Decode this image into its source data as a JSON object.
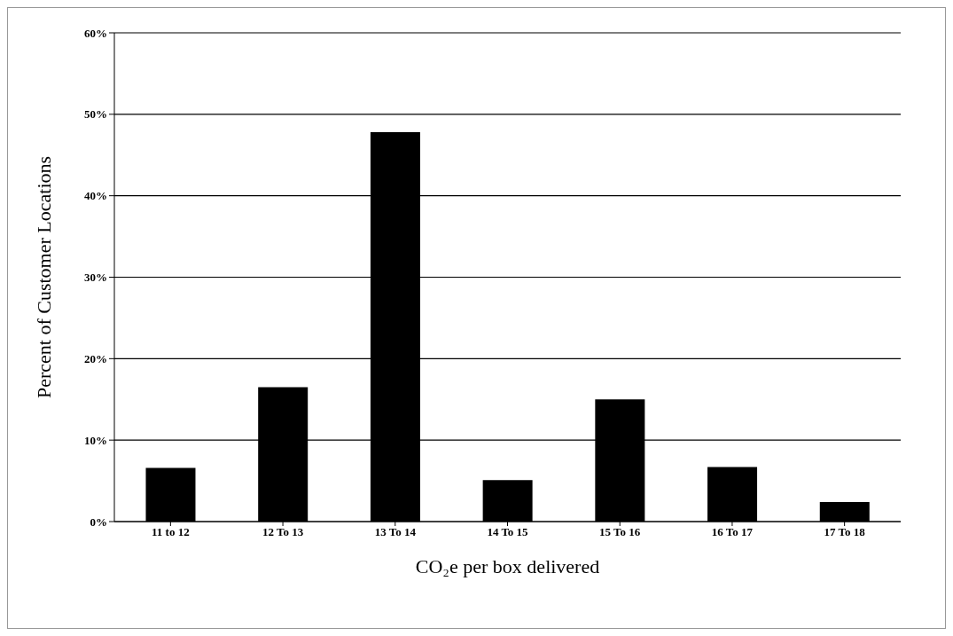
{
  "chart_data": {
    "type": "bar",
    "xlabel": "CO₂e per box delivered",
    "ylabel": "Percent of Customer Locations",
    "categories": [
      "11 to 12",
      "12 To 13",
      "13 To 14",
      "14 To 15",
      "15 To 16",
      "16 To 17",
      "17 To 18"
    ],
    "values": [
      6.6,
      16.5,
      47.8,
      5.1,
      15.0,
      6.7,
      2.4
    ],
    "color": "#000000",
    "ylim": [
      0,
      60
    ],
    "yticks": [
      {
        "value": 0,
        "label": "0%"
      },
      {
        "value": 10,
        "label": "10%"
      },
      {
        "value": 20,
        "label": "20%"
      },
      {
        "value": 30,
        "label": "30%"
      },
      {
        "value": 40,
        "label": "40%"
      },
      {
        "value": 50,
        "label": "50%"
      },
      {
        "value": 60,
        "label": "60%"
      }
    ],
    "grid": "y",
    "legend": false
  }
}
